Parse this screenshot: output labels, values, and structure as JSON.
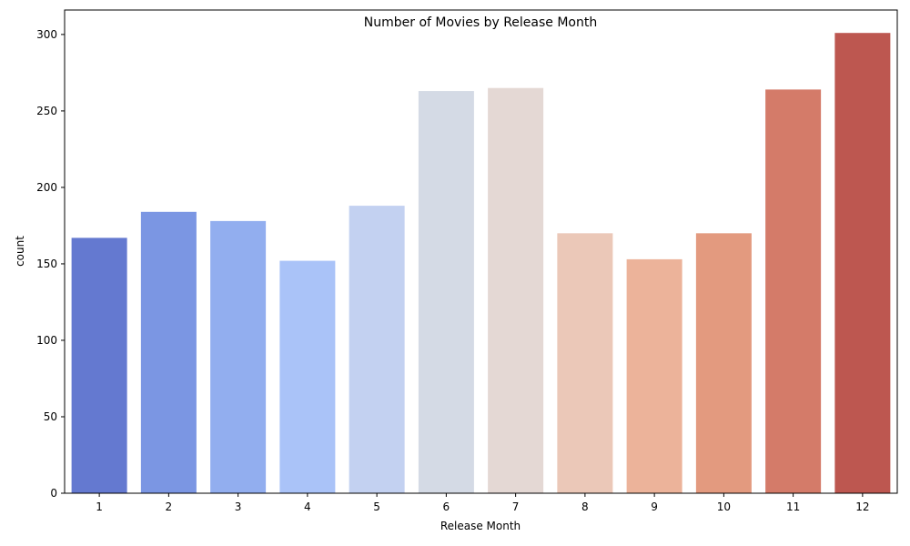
{
  "chart_data": {
    "type": "bar",
    "title": "Number of Movies by Release Month",
    "xlabel": "Release Month",
    "ylabel": "count",
    "categories": [
      "1",
      "2",
      "3",
      "4",
      "5",
      "6",
      "7",
      "8",
      "9",
      "10",
      "11",
      "12"
    ],
    "values": [
      167,
      184,
      178,
      152,
      188,
      263,
      265,
      170,
      153,
      170,
      264,
      301
    ],
    "colors": [
      "#6479d0",
      "#7b96e3",
      "#92aeef",
      "#aac3f8",
      "#c3d1f1",
      "#d4dae5",
      "#e4d8d4",
      "#ebc8b8",
      "#ecb39a",
      "#e39a7f",
      "#d47b69",
      "#bd5750"
    ],
    "ylim": [
      0,
      316
    ],
    "yticks": [
      0,
      50,
      100,
      150,
      200,
      250,
      300
    ],
    "grid": false,
    "legend": "none"
  }
}
